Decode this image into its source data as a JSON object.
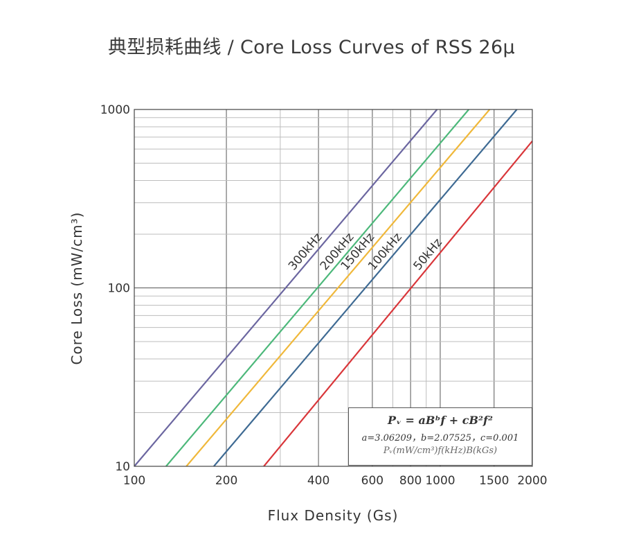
{
  "chart_data": {
    "type": "line",
    "title": "典型损耗曲线 / Core Loss Curves of RSS 26μ",
    "xlabel": "Flux Density (Gs)",
    "ylabel": "Core Loss (mW/cm³)",
    "xscale": "log",
    "yscale": "log",
    "xlim": [
      100,
      2000
    ],
    "ylim": [
      10,
      1000
    ],
    "x_ticks": [
      100,
      200,
      400,
      600,
      800,
      1000,
      1500,
      2000
    ],
    "x_tick_labels": [
      "100",
      "200",
      "400",
      "600",
      "800",
      "1000",
      "1500",
      "2000"
    ],
    "y_ticks": [
      10,
      100,
      1000
    ],
    "y_tick_labels": [
      "10",
      "100",
      "1000"
    ],
    "grid": true,
    "series": [
      {
        "name": "300kHz",
        "color": "#6b66a0",
        "x": [
          100,
          976
        ],
        "y": [
          10,
          1000
        ]
      },
      {
        "name": "200kHz",
        "color": "#4cb87a",
        "x": [
          127,
          1240
        ],
        "y": [
          10,
          1000
        ]
      },
      {
        "name": "150kHz",
        "color": "#f0b83a",
        "x": [
          148,
          1450
        ],
        "y": [
          10,
          1000
        ]
      },
      {
        "name": "100kHz",
        "color": "#3e6a93",
        "x": [
          182,
          1780
        ],
        "y": [
          10,
          1000
        ]
      },
      {
        "name": "50kHz",
        "color": "#d9363a",
        "x": [
          265,
          2000
        ],
        "y": [
          10,
          665
        ]
      }
    ],
    "formula": {
      "main": "Pᵥ = aBᵇf + cB²f²",
      "coefficients": "a=3.06209，b=2.07525，c=0.001",
      "units": "Pᵥ(mW/cm³)f(kHz)B(kGs)"
    }
  }
}
